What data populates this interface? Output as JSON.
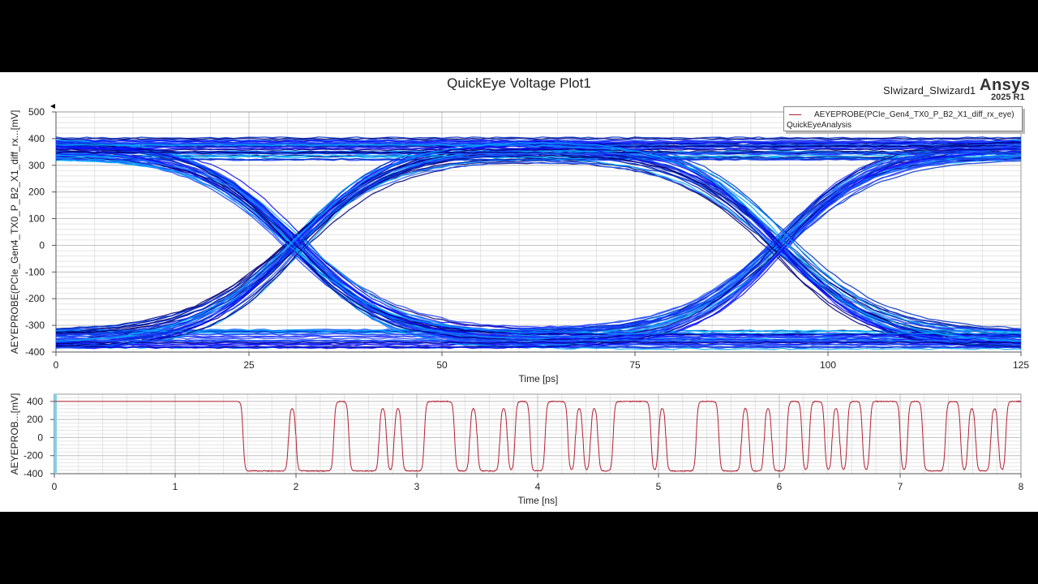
{
  "header": {
    "title": "QuickEye Voltage Plot1",
    "design_name": "SIwizard_SIwizard1",
    "brand": "Ansys",
    "version": "2025 R1"
  },
  "legend": {
    "series_name": "AEYEPROBE(PCIe_Gen4_TX0_P_B2_X1_diff_rx_eye)",
    "analysis": "QuickEyeAnalysis",
    "line_color": "#b22234"
  },
  "chart_data": [
    {
      "type": "eye",
      "xlabel": "Time [ps]",
      "ylabel": "AEYEPROBE(PCIe_Gen4_TX0_P_B2_X1_diff_rx...[mV]",
      "xlim": [
        0,
        125
      ],
      "ylim": [
        -400,
        500
      ],
      "xticks": [
        "0",
        "25",
        "50",
        "75",
        "100",
        "125"
      ],
      "yticks": [
        "500",
        "400",
        "300",
        "200",
        "100",
        "0",
        "-100",
        "-200",
        "-300",
        "-400"
      ],
      "crossings_ps": [
        31,
        94
      ],
      "high_level_mv": [
        320,
        405
      ],
      "low_level_mv": [
        -390,
        -315
      ],
      "grid": true,
      "trace_colors": [
        "#0a0aff",
        "#1f3dff",
        "#0033cc",
        "#2060ff",
        "#00aaff",
        "#000080"
      ]
    },
    {
      "type": "line",
      "xlabel": "Time [ns]",
      "ylabel": "AEYEPROB...[mV]",
      "xlim": [
        0,
        8
      ],
      "ylim": [
        -400,
        480
      ],
      "xticks": [
        "0",
        "1",
        "2",
        "3",
        "4",
        "5",
        "6",
        "7",
        "8"
      ],
      "yticks": [
        "400",
        "200",
        "0",
        "-200",
        "-400"
      ],
      "high_mv": 400,
      "low_mv": -370,
      "single_bit_peak_mv": 320,
      "bits": "11111111111111111111111110000001000001100001010001111001000101100111010100111110100001110001001001101101011011110110001101001011",
      "grid": true,
      "color": "#b22234"
    }
  ]
}
